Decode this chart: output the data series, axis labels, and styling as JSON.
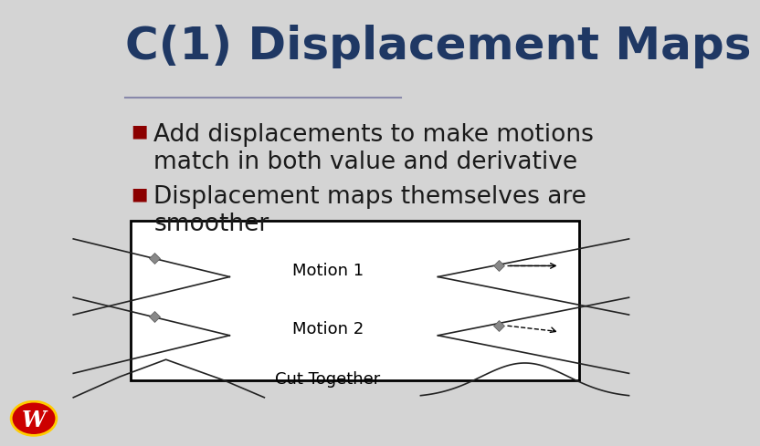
{
  "title": "C(1) Displacement Maps",
  "title_color": "#1F3864",
  "title_fontsize": 36,
  "slide_bg": "#D4D4D4",
  "bullet_color": "#8B0000",
  "bullet_text_color": "#1a1a1a",
  "bullet_fontsize": 19,
  "bullets": [
    "Add displacements to make motions\nmatch in both value and derivative",
    "Displacement maps themselves are\nsmoother"
  ],
  "diagram_bg": "#FFFFFF",
  "diagram_border": "#000000",
  "motion1_label": "Motion 1",
  "motion2_label": "Motion 2",
  "cut_label": "Cut Together",
  "diagram_text_fontsize": 13,
  "separator_color": "#8888AA",
  "diamond_color": "#888888",
  "line_color": "#222222"
}
